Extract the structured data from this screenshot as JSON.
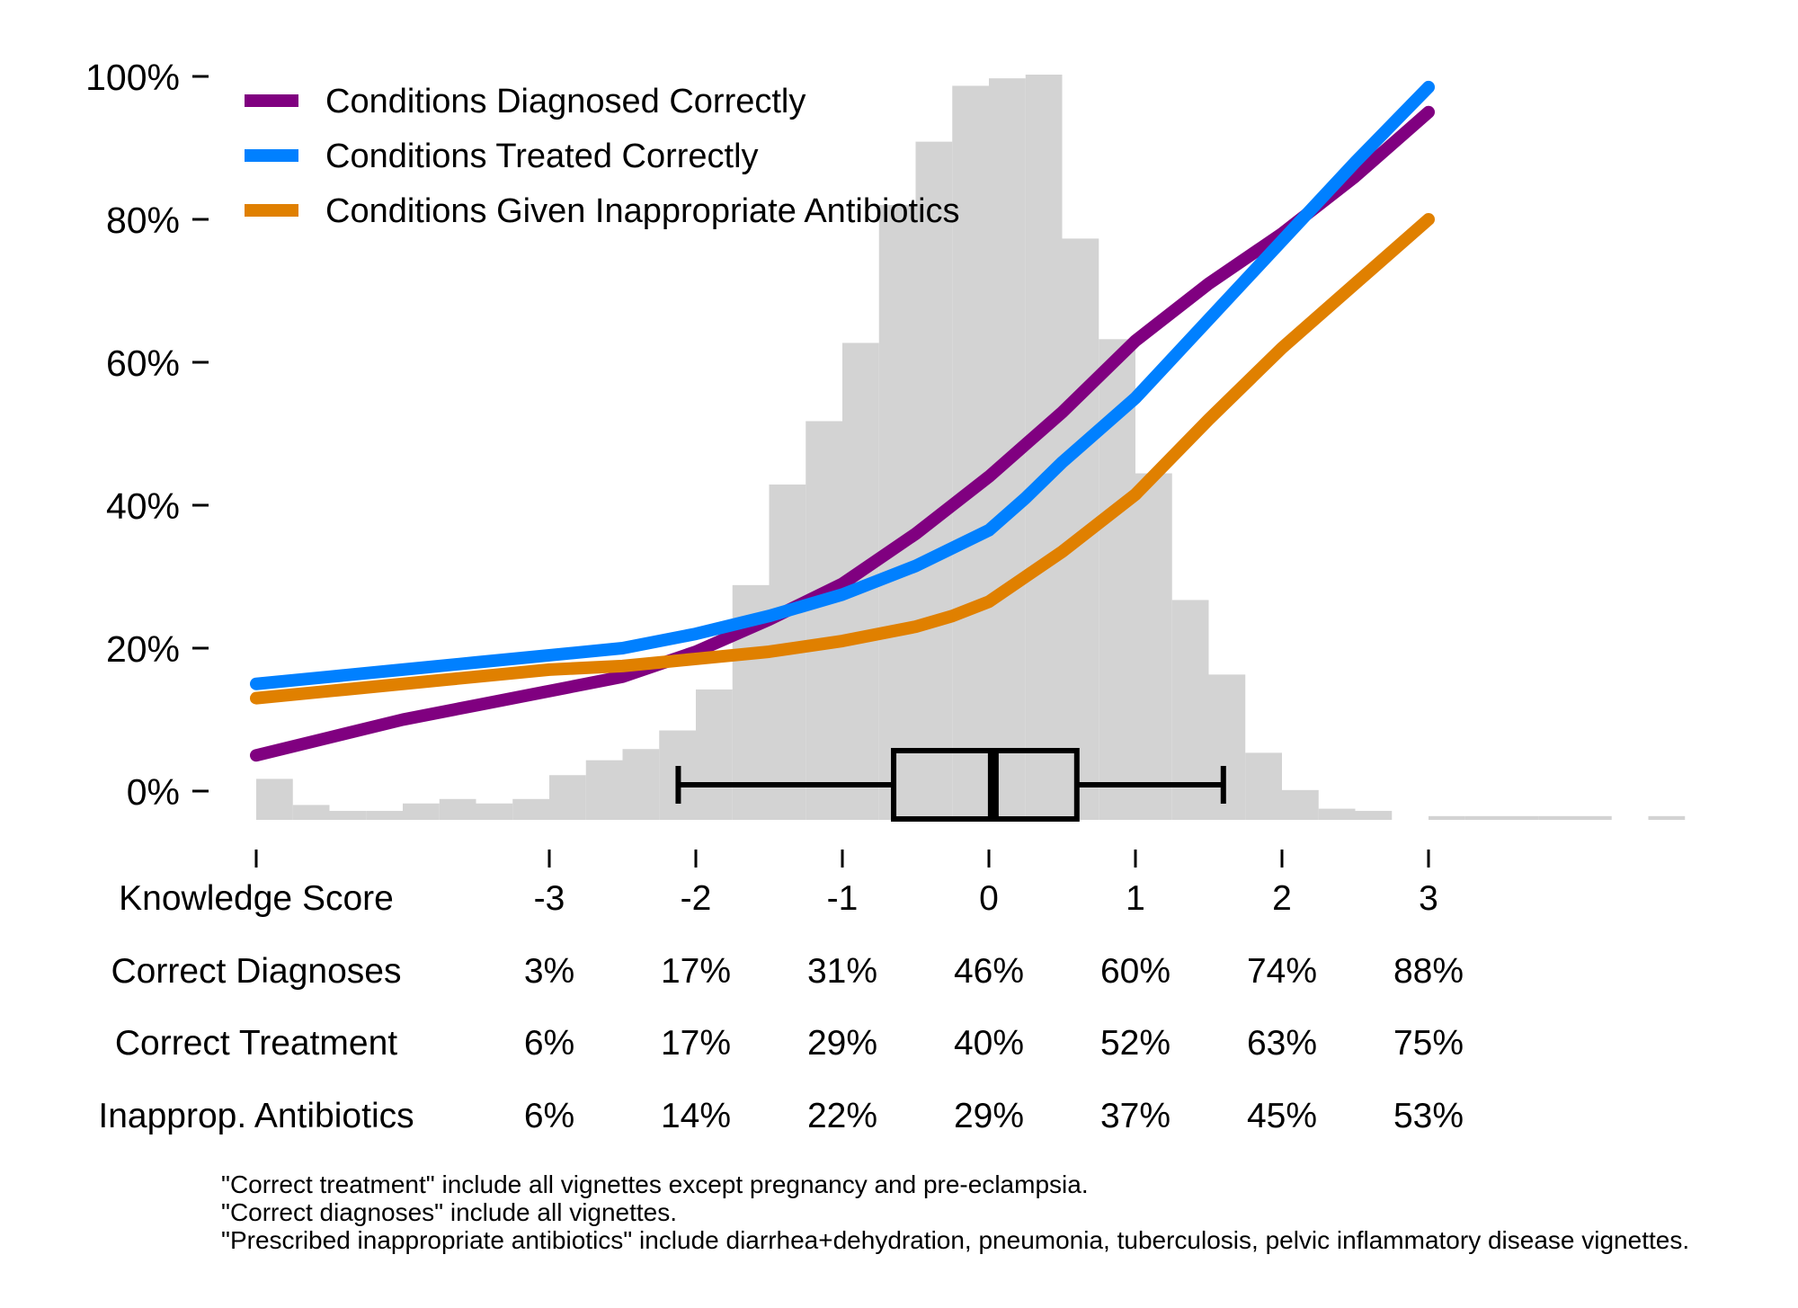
{
  "chart_data": {
    "type": "line",
    "x_label": "Knowledge Score",
    "x_ticks": [
      "-3",
      "-2",
      "-1",
      "0",
      "1",
      "2",
      "3"
    ],
    "x_tick_values": [
      -3,
      -2,
      -1,
      0,
      1,
      2,
      3
    ],
    "y_ticks": [
      "0%",
      "20%",
      "40%",
      "60%",
      "80%",
      "100%"
    ],
    "y_tick_values": [
      0,
      20,
      40,
      60,
      80,
      100
    ],
    "ylim": [
      0,
      100
    ],
    "xlim": [
      -5,
      3
    ],
    "legend_position": "top-left",
    "series": [
      {
        "name": "Conditions Diagnosed Correctly",
        "color": "#800080",
        "x": [
          -5,
          -4.5,
          -4,
          -3.5,
          -3,
          -2.5,
          -2,
          -1.5,
          -1,
          -0.5,
          -0.25,
          0,
          0.25,
          0.5,
          1,
          1.5,
          2,
          2.5,
          3
        ],
        "y": [
          5,
          7.5,
          10,
          12,
          14,
          16,
          19.5,
          24,
          29,
          36,
          40,
          44,
          48.5,
          53,
          63,
          71,
          78,
          86,
          95
        ]
      },
      {
        "name": "Conditions Treated Correctly",
        "color": "#0080FF",
        "x": [
          -5,
          -4.5,
          -4,
          -3.5,
          -3,
          -2.5,
          -2,
          -1.5,
          -1,
          -0.5,
          -0.25,
          0,
          0.25,
          0.5,
          1,
          1.5,
          2,
          2.5,
          3
        ],
        "y": [
          15,
          16,
          17,
          18,
          19,
          20,
          22,
          24.5,
          27.5,
          31.5,
          34,
          36.5,
          41,
          46,
          55,
          66,
          77,
          88,
          98.5
        ]
      },
      {
        "name": "Conditions Given Inappropriate Antibiotics",
        "color": "#E08000",
        "x": [
          -5,
          -4.5,
          -4,
          -3.5,
          -3,
          -2.5,
          -2,
          -1.5,
          -1,
          -0.5,
          -0.25,
          0,
          0.25,
          0.5,
          1,
          1.5,
          2,
          2.5,
          3
        ],
        "y": [
          13,
          14,
          15,
          16,
          17,
          17.5,
          18.5,
          19.5,
          21,
          23,
          24.5,
          26.5,
          30,
          33.5,
          41.5,
          52,
          62,
          71,
          80
        ]
      }
    ],
    "histogram": {
      "bin_edges": [
        -5,
        -4.75,
        -4.5,
        -4.25,
        -4,
        -3.75,
        -3.5,
        -3.25,
        -3,
        -2.75,
        -2.5,
        -2.25,
        -2,
        -1.75,
        -1.5,
        -1.25,
        -1,
        -0.75,
        -0.5,
        -0.25,
        0,
        0.25,
        0.5,
        0.75,
        1,
        1.25,
        1.5,
        1.75,
        2,
        2.25,
        2.5,
        2.75,
        3,
        3.25,
        3.5,
        3.75,
        4,
        4.25,
        4.5,
        4.75,
        5
      ],
      "relative_heights": [
        5.5,
        2,
        1.2,
        1.2,
        2.2,
        2.8,
        2.2,
        2.8,
        6,
        8,
        9.5,
        12,
        17.5,
        31.5,
        45,
        53.5,
        64,
        82.5,
        91,
        98.5,
        99.5,
        100,
        78,
        64.5,
        46.5,
        29.5,
        19.5,
        9,
        4,
        1.5,
        1.2,
        0,
        0.5,
        0.5,
        0.5,
        0.5,
        0.5,
        0,
        0.5,
        0
      ],
      "color": "#d3d3d3"
    },
    "boxplot": {
      "whisker_low": -2.12,
      "q1": -0.65,
      "median": 0.03,
      "q3": 0.6,
      "whisker_high": 1.6
    },
    "table": {
      "rows": [
        {
          "label": "Correct Diagnoses",
          "values": [
            "3%",
            "17%",
            "31%",
            "46%",
            "60%",
            "74%",
            "88%"
          ]
        },
        {
          "label": "Correct Treatment",
          "values": [
            "6%",
            "17%",
            "29%",
            "40%",
            "52%",
            "63%",
            "75%"
          ]
        },
        {
          "label": "Inapprop. Antibiotics",
          "values": [
            "6%",
            "14%",
            "22%",
            "29%",
            "37%",
            "45%",
            "53%"
          ]
        }
      ]
    }
  },
  "notes": [
    "\"Correct treatment\" include all vignettes except pregnancy and pre-eclampsia.",
    "\"Correct diagnoses\" include all vignettes.",
    "\"Prescribed inappropriate antibiotics\" include diarrhea+dehydration, pneumonia, tuberculosis, pelvic inflammatory disease vignettes."
  ]
}
